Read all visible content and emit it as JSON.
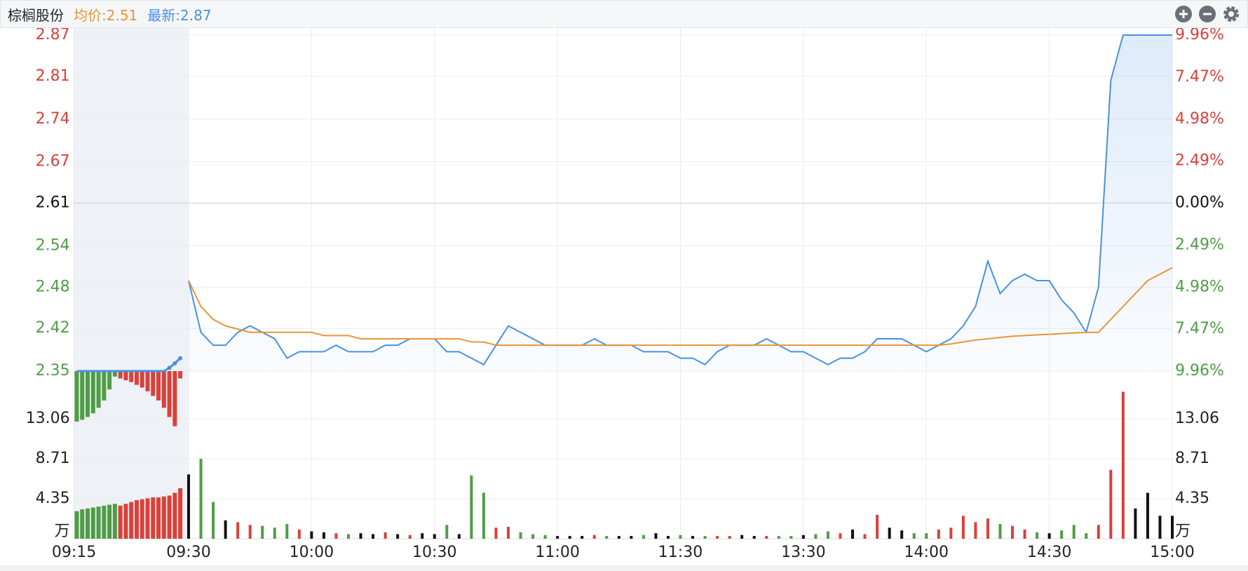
{
  "header": {
    "title": "棕榈股份",
    "avg": "均价:2.51",
    "last": "最新:2.87"
  },
  "chart_data": {
    "type": "line",
    "x": [
      "09:30",
      "09:33",
      "09:36",
      "09:39",
      "09:42",
      "09:45",
      "09:48",
      "09:51",
      "09:54",
      "09:57",
      "10:00",
      "10:03",
      "10:06",
      "10:09",
      "10:12",
      "10:15",
      "10:18",
      "10:21",
      "10:24",
      "10:27",
      "10:30",
      "10:33",
      "10:36",
      "10:39",
      "10:42",
      "10:45",
      "10:48",
      "10:51",
      "10:54",
      "10:57",
      "11:00",
      "11:03",
      "11:06",
      "11:09",
      "11:12",
      "11:15",
      "11:18",
      "11:21",
      "11:24",
      "11:27",
      "11:30",
      "13:03",
      "13:06",
      "13:09",
      "13:12",
      "13:15",
      "13:18",
      "13:21",
      "13:24",
      "13:27",
      "13:30",
      "13:33",
      "13:36",
      "13:39",
      "13:42",
      "13:45",
      "13:48",
      "13:51",
      "13:54",
      "13:57",
      "14:00",
      "14:03",
      "14:06",
      "14:09",
      "14:12",
      "14:15",
      "14:18",
      "14:21",
      "14:24",
      "14:27",
      "14:30",
      "14:33",
      "14:36",
      "14:39",
      "14:42",
      "14:45",
      "14:48",
      "14:51",
      "14:54",
      "14:57",
      "15:00"
    ],
    "series": [
      {
        "color": "#4a90e2",
        "values": [
          2.49,
          2.41,
          2.39,
          2.39,
          2.41,
          2.42,
          2.41,
          2.4,
          2.37,
          2.38,
          2.38,
          2.38,
          2.39,
          2.38,
          2.38,
          2.38,
          2.39,
          2.39,
          2.4,
          2.4,
          2.4,
          2.38,
          2.38,
          2.37,
          2.36,
          2.39,
          2.42,
          2.41,
          2.4,
          2.39,
          2.39,
          2.39,
          2.39,
          2.4,
          2.39,
          2.39,
          2.39,
          2.38,
          2.38,
          2.38,
          2.37,
          2.37,
          2.36,
          2.38,
          2.39,
          2.39,
          2.39,
          2.4,
          2.39,
          2.38,
          2.38,
          2.37,
          2.36,
          2.37,
          2.37,
          2.38,
          2.4,
          2.4,
          2.4,
          2.39,
          2.38,
          2.39,
          2.4,
          2.42,
          2.45,
          2.52,
          2.47,
          2.49,
          2.5,
          2.49,
          2.49,
          2.46,
          2.44,
          2.41,
          2.48,
          2.8,
          2.87,
          2.87,
          2.87,
          2.87,
          2.87
        ]
      },
      {
        "color": "#e8953a",
        "values": [
          2.49,
          2.45,
          2.43,
          2.42,
          2.415,
          2.41,
          2.41,
          2.41,
          2.41,
          2.41,
          2.41,
          2.405,
          2.405,
          2.405,
          2.4,
          2.4,
          2.4,
          2.4,
          2.4,
          2.4,
          2.4,
          2.4,
          2.4,
          2.395,
          2.395,
          2.39,
          2.39,
          2.39,
          2.39,
          2.39,
          2.39,
          2.39,
          2.39,
          2.39,
          2.39,
          2.39,
          2.39,
          2.39,
          2.39,
          2.39,
          2.39,
          2.39,
          2.39,
          2.39,
          2.39,
          2.39,
          2.39,
          2.39,
          2.39,
          2.39,
          2.39,
          2.39,
          2.39,
          2.39,
          2.39,
          2.39,
          2.39,
          2.39,
          2.39,
          2.39,
          2.39,
          2.39,
          2.392,
          2.395,
          2.398,
          2.4,
          2.402,
          2.404,
          2.405,
          2.406,
          2.407,
          2.408,
          2.409,
          2.41,
          2.41,
          2.43,
          2.45,
          2.47,
          2.49,
          2.5,
          2.51
        ]
      }
    ],
    "ylim": [
      2.35,
      2.87
    ],
    "yticks": [
      2.35,
      {
        "value": 2.416,
        "label": "2.42"
      },
      2.48,
      {
        "value": 2.544,
        "label": "2.54"
      },
      2.61,
      {
        "value": 2.674,
        "label": "2.67"
      },
      2.74,
      {
        "value": 2.806,
        "label": "2.81"
      },
      2.87
    ],
    "y2lim": [
      -9.96,
      9.96
    ],
    "y2ticks": [
      {
        "value": -9.96,
        "label": "9.96%"
      },
      {
        "value": -7.47,
        "label": "7.47%"
      },
      {
        "value": -4.98,
        "label": "4.98%"
      },
      {
        "value": -2.49,
        "label": "2.49%"
      },
      {
        "value": 0,
        "label": "0.00%"
      },
      {
        "value": 2.49,
        "label": "2.49%"
      },
      {
        "value": 4.98,
        "label": "4.98%"
      },
      {
        "value": 7.47,
        "label": "7.47%"
      },
      {
        "value": 9.96,
        "label": "9.96%"
      }
    ],
    "x_labels": [
      "09:15",
      "09:30",
      "10:00",
      "10:30",
      "11:00",
      "11:30",
      "13:30",
      "14:00",
      "14:30",
      "15:00"
    ],
    "grid": true,
    "up_color": "#d9413a",
    "down_color": "#4f9d45",
    "flat_color": "#111111",
    "volume": {
      "values": [
        7.0,
        8.7,
        4.0,
        2.0,
        1.8,
        1.5,
        1.4,
        1.2,
        1.6,
        1.0,
        0.8,
        0.7,
        0.6,
        0.5,
        0.6,
        0.5,
        0.7,
        0.5,
        0.4,
        0.6,
        0.5,
        1.5,
        0.5,
        6.9,
        5.0,
        1.2,
        1.3,
        0.7,
        0.5,
        0.4,
        0.3,
        0.3,
        0.3,
        0.4,
        0.3,
        0.3,
        0.3,
        0.4,
        0.6,
        0.3,
        0.4,
        0.3,
        0.3,
        0.3,
        0.3,
        0.4,
        0.3,
        0.3,
        0.3,
        0.3,
        0.4,
        0.5,
        0.8,
        0.6,
        1.0,
        0.5,
        2.6,
        1.2,
        0.9,
        0.6,
        0.6,
        1.0,
        1.2,
        2.5,
        1.8,
        2.2,
        1.6,
        1.4,
        1.0,
        0.7,
        0.6,
        0.9,
        1.5,
        0.6,
        1.5,
        7.5,
        16.0,
        3.3,
        5.0,
        2.5,
        2.5
      ],
      "ylim": [
        0,
        17.41
      ],
      "yticks": [
        4.35,
        8.71,
        13.06
      ],
      "unit": "万"
    },
    "auction": {
      "price": [
        2.35,
        2.35,
        2.35,
        2.35,
        2.35,
        2.35,
        2.35,
        2.35,
        2.35,
        2.35,
        2.35,
        2.35,
        2.35,
        2.35,
        2.35,
        2.35,
        2.35,
        2.355,
        2.362,
        2.37
      ],
      "groups": [
        {
          "color": "#4f9d45",
          "volume": [
            3.0,
            3.2,
            3.3,
            3.4,
            3.5,
            3.6,
            3.7,
            3.8
          ],
          "imbalance": [
            5.5,
            5.3,
            5.0,
            4.6,
            4.0,
            3.2,
            2.0,
            0.6
          ]
        },
        {
          "color": "#d9413a",
          "volume": [
            3.6,
            3.8,
            4.0,
            4.2,
            4.3,
            4.4,
            4.5,
            4.5,
            4.6,
            4.7,
            5.0,
            5.5
          ],
          "imbalance": [
            0.8,
            1.0,
            1.2,
            1.5,
            1.8,
            2.2,
            2.7,
            3.2,
            4.0,
            5.0,
            6.0,
            0.8
          ]
        }
      ]
    }
  }
}
